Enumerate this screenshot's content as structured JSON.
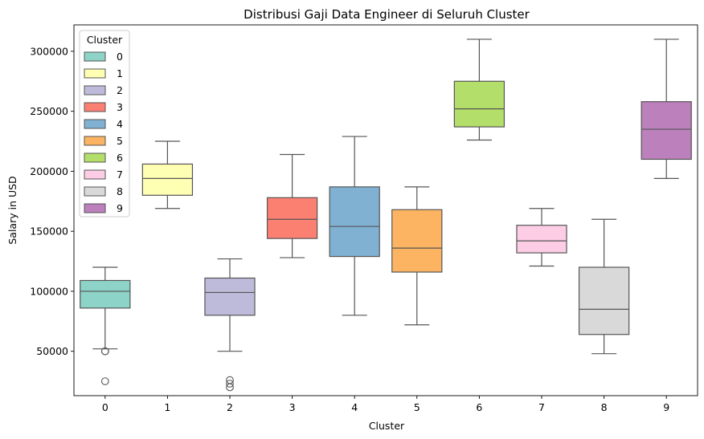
{
  "chart_data": {
    "type": "box",
    "title": "Distribusi Gaji Data Engineer di Seluruh Cluster",
    "xlabel": "Cluster",
    "ylabel": "Salary in USD",
    "categories": [
      "0",
      "1",
      "2",
      "3",
      "4",
      "5",
      "6",
      "7",
      "8",
      "9"
    ],
    "ylim": [
      13000,
      322000
    ],
    "yticks": [
      50000,
      100000,
      150000,
      200000,
      250000,
      300000
    ],
    "ytick_labels": [
      "50000",
      "100000",
      "150000",
      "200000",
      "250000",
      "300000"
    ],
    "grid": false,
    "legend": {
      "title": "Cluster",
      "placement": "top-left",
      "entries": [
        "0",
        "1",
        "2",
        "3",
        "4",
        "5",
        "6",
        "7",
        "8",
        "9"
      ]
    },
    "series": [
      {
        "category": "0",
        "whisker_low": 52000,
        "q1": 86000,
        "median": 100000,
        "q3": 109000,
        "whisker_high": 120000,
        "outliers": [
          50000,
          50000,
          25000
        ],
        "color": "#8dd3c7"
      },
      {
        "category": "1",
        "whisker_low": 169000,
        "q1": 180000,
        "median": 194000,
        "q3": 206000,
        "whisker_high": 225000,
        "outliers": [],
        "color": "#ffffb3"
      },
      {
        "category": "2",
        "whisker_low": 50000,
        "q1": 80000,
        "median": 99000,
        "q3": 111000,
        "whisker_high": 127000,
        "outliers": [
          26000,
          23000,
          20000
        ],
        "color": "#bebada"
      },
      {
        "category": "3",
        "whisker_low": 128000,
        "q1": 144000,
        "median": 160000,
        "q3": 178000,
        "whisker_high": 214000,
        "outliers": [],
        "color": "#fb8072"
      },
      {
        "category": "4",
        "whisker_low": 80000,
        "q1": 129000,
        "median": 154000,
        "q3": 187000,
        "whisker_high": 229000,
        "outliers": [],
        "color": "#80b1d3"
      },
      {
        "category": "5",
        "whisker_low": 72000,
        "q1": 116000,
        "median": 136000,
        "q3": 168000,
        "whisker_high": 187000,
        "outliers": [],
        "color": "#fdb462"
      },
      {
        "category": "6",
        "whisker_low": 226000,
        "q1": 237000,
        "median": 252000,
        "q3": 275000,
        "whisker_high": 310000,
        "outliers": [],
        "color": "#b3de69"
      },
      {
        "category": "7",
        "whisker_low": 121000,
        "q1": 132000,
        "median": 142000,
        "q3": 155000,
        "whisker_high": 169000,
        "outliers": [],
        "color": "#fccde5"
      },
      {
        "category": "8",
        "whisker_low": 48000,
        "q1": 64000,
        "median": 85000,
        "q3": 120000,
        "whisker_high": 160000,
        "outliers": [],
        "color": "#d9d9d9"
      },
      {
        "category": "9",
        "whisker_low": 194000,
        "q1": 210000,
        "median": 235000,
        "q3": 258000,
        "whisker_high": 310000,
        "outliers": [],
        "color": "#bc80bd"
      }
    ]
  }
}
